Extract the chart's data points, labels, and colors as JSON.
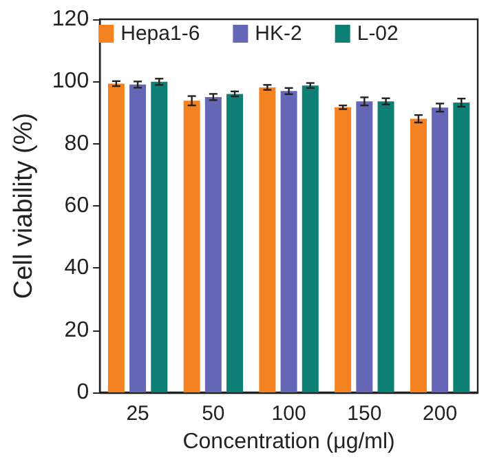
{
  "chart_data": {
    "type": "bar",
    "xlabel": "Concentration (μg/ml)",
    "ylabel": "Cell viability (%)",
    "categories": [
      "25",
      "50",
      "100",
      "150",
      "200"
    ],
    "series": [
      {
        "name": "Hepa1-6",
        "color": "#f58220",
        "values": [
          99.3,
          93.8,
          98.1,
          91.7,
          88.0
        ],
        "errors": [
          0.8,
          1.5,
          0.8,
          0.6,
          1.2
        ]
      },
      {
        "name": "HK-2",
        "color": "#6566b5",
        "values": [
          99.0,
          95.0,
          96.9,
          93.6,
          91.6
        ],
        "errors": [
          1.0,
          1.0,
          1.0,
          1.3,
          1.3
        ]
      },
      {
        "name": "L-02",
        "color": "#0e7f75",
        "values": [
          99.9,
          96.0,
          98.7,
          93.6,
          93.2
        ],
        "errors": [
          1.0,
          0.8,
          0.8,
          1.0,
          1.3
        ]
      }
    ],
    "ylim": [
      0,
      120
    ],
    "yticks": [
      0,
      20,
      40,
      60,
      80,
      100,
      120
    ],
    "grid": false,
    "legend": "top"
  }
}
